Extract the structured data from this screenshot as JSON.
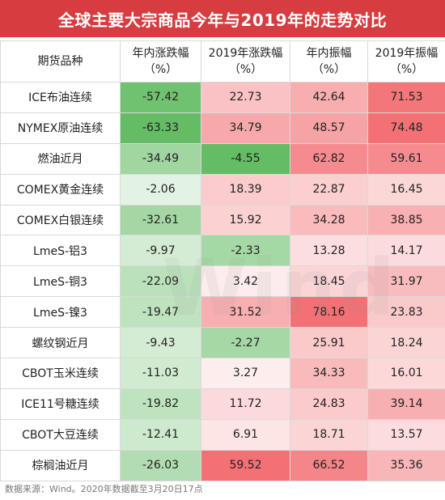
{
  "title": "全球主要大宗商品今年与2019年的走势对比",
  "headers": [
    {
      "line1": "期货品种",
      "line2": ""
    },
    {
      "line1": "年内涨跌幅",
      "line2": "（%）"
    },
    {
      "line1": "2019年涨跌幅",
      "line2": "（%）"
    },
    {
      "line1": "年内振幅",
      "line2": "（%）"
    },
    {
      "line1": "2019年振幅",
      "line2": "（%）"
    }
  ],
  "chart_data": {
    "type": "table",
    "title": "全球主要大宗商品今年与2019年的走势对比",
    "columns": [
      "期货品种",
      "年内涨跌幅（%）",
      "2019年涨跌幅（%）",
      "年内振幅（%）",
      "2019年振幅（%）"
    ],
    "rows": [
      {
        "name": "ICE布油连续",
        "values": [
          "-57.42",
          "22.73",
          "42.64",
          "71.53"
        ]
      },
      {
        "name": "NYMEX原油连续",
        "values": [
          "-63.33",
          "34.79",
          "48.57",
          "74.48"
        ]
      },
      {
        "name": "燃油近月",
        "values": [
          "-34.49",
          "-4.55",
          "62.82",
          "59.61"
        ]
      },
      {
        "name": "COMEX黄金连续",
        "values": [
          "-2.06",
          "18.39",
          "22.87",
          "16.45"
        ]
      },
      {
        "name": "COMEX白银连续",
        "values": [
          "-32.61",
          "15.92",
          "34.28",
          "38.85"
        ]
      },
      {
        "name": "LmeS-铝3",
        "values": [
          "-9.97",
          "-2.33",
          "13.28",
          "14.17"
        ]
      },
      {
        "name": "LmeS-铜3",
        "values": [
          "-22.09",
          "3.42",
          "18.45",
          "31.97"
        ]
      },
      {
        "name": "LmeS-镍3",
        "values": [
          "-19.47",
          "31.52",
          "78.16",
          "23.83"
        ]
      },
      {
        "name": "螺纹钢近月",
        "values": [
          "-9.43",
          "-2.27",
          "25.91",
          "18.24"
        ]
      },
      {
        "name": "CBOT玉米连续",
        "values": [
          "-11.03",
          "3.27",
          "34.33",
          "16.01"
        ]
      },
      {
        "name": "ICE11号糖连续",
        "values": [
          "-19.82",
          "11.72",
          "24.83",
          "39.14"
        ]
      },
      {
        "name": "CBOT大豆连续",
        "values": [
          "-12.41",
          "6.91",
          "18.71",
          "13.57"
        ]
      },
      {
        "name": "棕榈油近月",
        "values": [
          "-26.03",
          "59.52",
          "66.52",
          "35.36"
        ]
      }
    ]
  },
  "colors": {
    "title_bg": "#d63c40",
    "negative": "#5cb85c",
    "positive": "#f26a6e",
    "neutral": "#ffffff"
  },
  "watermark": "Wind",
  "footnote": "数据来源：Wind。2020年数据截至3月20日17点"
}
